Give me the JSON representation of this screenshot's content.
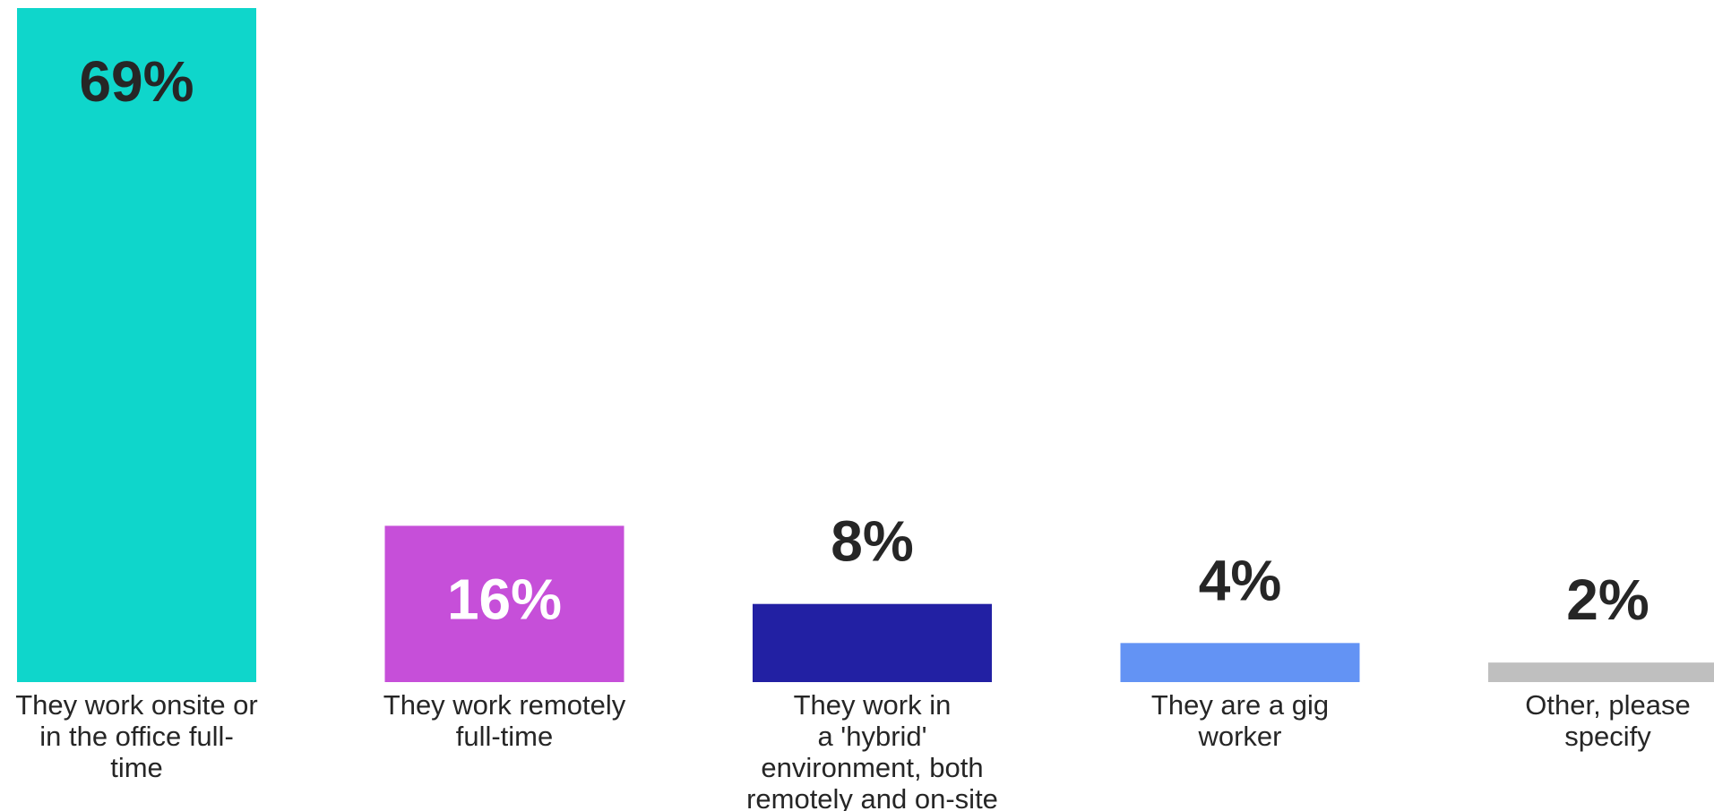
{
  "chart_data": {
    "type": "bar",
    "categories": [
      [
        "They work onsite or",
        "in the office full-",
        "time"
      ],
      [
        "They work remotely",
        "full-time"
      ],
      [
        "They work in",
        "a 'hybrid'",
        "environment, both",
        "remotely and on-site"
      ],
      [
        "They are a gig",
        "worker"
      ],
      [
        "Other, please",
        "specify"
      ]
    ],
    "values": [
      69,
      16,
      8,
      4,
      2
    ],
    "value_labels": [
      "69%",
      "16%",
      "8%",
      "4%",
      "2%"
    ],
    "colors": [
      "#0fd6cb",
      "#c64fd9",
      "#2220a3",
      "#6393f4",
      "#bfbfbf"
    ],
    "value_label_colors": [
      "#262626",
      "#ffffff",
      "#262626",
      "#262626",
      "#262626"
    ],
    "value_label_position": [
      "inside",
      "inside",
      "above",
      "above",
      "above"
    ],
    "ylim": [
      0,
      69
    ],
    "grid": false,
    "legend": "none"
  }
}
